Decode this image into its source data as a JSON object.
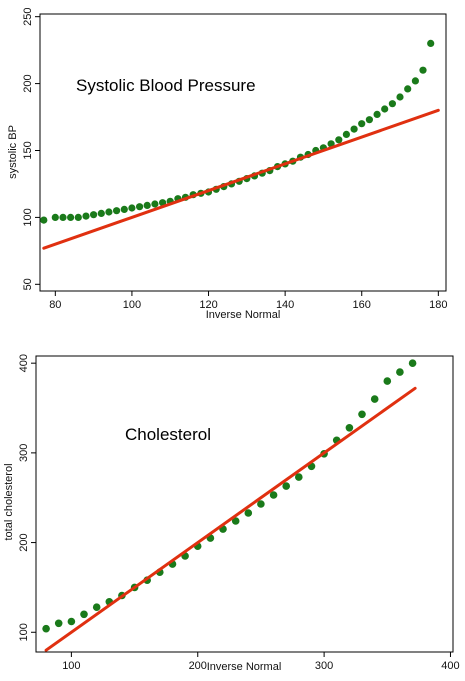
{
  "chart_data": [
    {
      "type": "scatter",
      "title": "Systolic Blood Pressure",
      "xlabel": "Inverse Normal",
      "ylabel": "systolic BP",
      "xlim": [
        76,
        182
      ],
      "ylim": [
        45,
        252
      ],
      "xticks": [
        80,
        100,
        120,
        140,
        160,
        180
      ],
      "yticks": [
        50,
        100,
        150,
        200,
        250
      ],
      "grid": false,
      "point_color": "#1a7a1a",
      "line_color": "#e03010",
      "reference_line": {
        "name": "",
        "x": [
          77,
          180
        ],
        "y": [
          77,
          180
        ]
      },
      "points": {
        "x": [
          77,
          80,
          82,
          84,
          86,
          88,
          90,
          92,
          94,
          96,
          98,
          100,
          102,
          104,
          106,
          108,
          110,
          112,
          114,
          116,
          118,
          120,
          122,
          124,
          126,
          128,
          130,
          132,
          134,
          136,
          138,
          140,
          142,
          144,
          146,
          148,
          150,
          152,
          154,
          156,
          158,
          160,
          162,
          164,
          166,
          168,
          170,
          172,
          174,
          176,
          178
        ],
        "y": [
          98,
          100,
          100,
          100,
          100,
          101,
          102,
          103,
          104,
          105,
          106,
          107,
          108,
          109,
          110,
          111,
          112,
          114,
          115,
          117,
          118,
          119,
          121,
          123,
          125,
          127,
          129,
          131,
          133,
          135,
          138,
          140,
          142,
          145,
          147,
          150,
          152,
          155,
          158,
          162,
          166,
          170,
          173,
          177,
          181,
          185,
          190,
          196,
          202,
          210,
          230
        ]
      }
    },
    {
      "type": "scatter",
      "title": "Cholesterol",
      "xlabel": "Inverse Normal",
      "ylabel": "total cholesterol",
      "xlim": [
        72,
        402
      ],
      "ylim": [
        78,
        408
      ],
      "xticks": [
        100,
        200,
        300,
        400
      ],
      "yticks": [
        100,
        200,
        300,
        400
      ],
      "grid": false,
      "point_color": "#1a7a1a",
      "line_color": "#e03010",
      "reference_line": {
        "name": "",
        "x": [
          80,
          372
        ],
        "y": [
          80,
          372
        ]
      },
      "points": {
        "x": [
          80,
          90,
          100,
          110,
          120,
          130,
          140,
          150,
          160,
          170,
          180,
          190,
          200,
          210,
          220,
          230,
          240,
          250,
          260,
          270,
          280,
          290,
          300,
          310,
          320,
          330,
          340,
          350,
          360,
          370
        ],
        "y": [
          104,
          110,
          112,
          120,
          128,
          134,
          141,
          150,
          158,
          167,
          176,
          185,
          196,
          205,
          215,
          224,
          233,
          243,
          253,
          263,
          273,
          285,
          299,
          314,
          328,
          343,
          360,
          380,
          390,
          400
        ]
      }
    }
  ]
}
